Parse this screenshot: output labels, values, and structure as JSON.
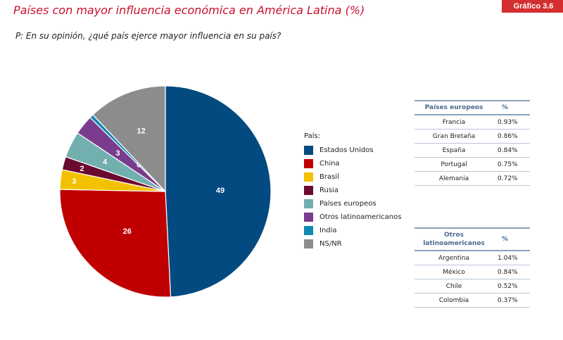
{
  "badge": "Gráfico 3.6",
  "title": "Países con mayor influencia económica en América Latina (%)",
  "question": "P: En su opinión, ¿qué país ejerce mayor influencia en su país?",
  "chart_data": {
    "type": "pie",
    "legend_title": "País:",
    "legend_position": "right",
    "slices": [
      {
        "label": "Estados Unidos",
        "value": 49,
        "color": "#034a80"
      },
      {
        "label": "China",
        "value": 26,
        "color": "#c00000"
      },
      {
        "label": "Brasil",
        "value": 3,
        "color": "#f2c200"
      },
      {
        "label": "Rusia",
        "value": 2,
        "color": "#6b0a30"
      },
      {
        "label": "Países europeos",
        "value": 4,
        "color": "#72b0b0"
      },
      {
        "label": "Otros latinoamericanos",
        "value": 3,
        "color": "#7a3c8c"
      },
      {
        "label": "India",
        "value": 0,
        "color": "#1288b0"
      },
      {
        "label": "NS/NR",
        "value": 12,
        "color": "#8c8c8c"
      }
    ]
  },
  "tables": {
    "europeos": {
      "header": [
        "Países europeos",
        "%"
      ],
      "rows": [
        {
          "name": "Francia",
          "pct": "0.93%"
        },
        {
          "name": "Gran Bretaña",
          "pct": "0.86%"
        },
        {
          "name": "España",
          "pct": "0.84%"
        },
        {
          "name": "Portugal",
          "pct": "0.75%"
        },
        {
          "name": "Alemania",
          "pct": "0.72%"
        }
      ]
    },
    "latinoamericanos": {
      "header": [
        "Otros latinoamericanos",
        "%"
      ],
      "rows": [
        {
          "name": "Argentina",
          "pct": "1.04%"
        },
        {
          "name": "México",
          "pct": "0.84%"
        },
        {
          "name": "Chile",
          "pct": "0.52%"
        },
        {
          "name": "Colombia",
          "pct": "0.37%"
        }
      ]
    }
  }
}
